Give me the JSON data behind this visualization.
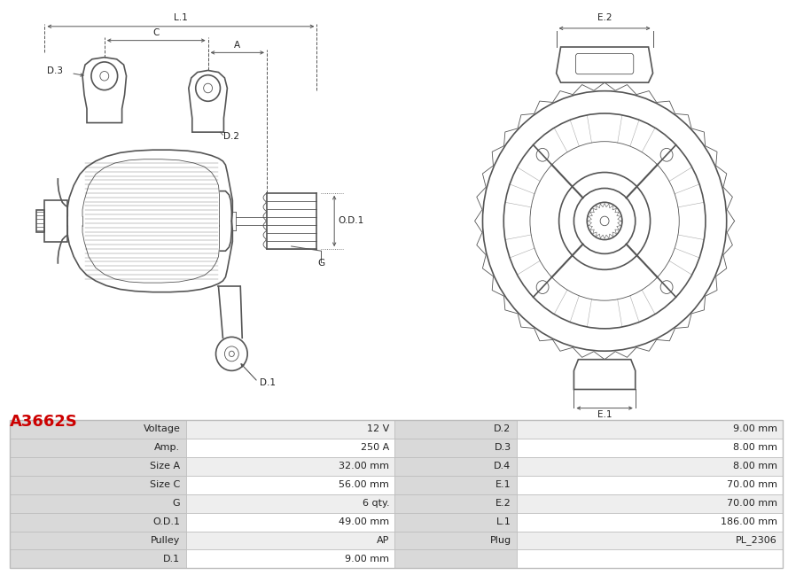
{
  "title": "A3662S",
  "title_color": "#cc0000",
  "table_left_headers": [
    "Voltage",
    "Amp.",
    "Size A",
    "Size C",
    "G",
    "O.D.1",
    "Pulley",
    "D.1"
  ],
  "table_left_values": [
    "12 V",
    "250 A",
    "32.00 mm",
    "56.00 mm",
    "6 qty.",
    "49.00 mm",
    "AP",
    "9.00 mm"
  ],
  "table_right_headers": [
    "D.2",
    "D.3",
    "D.4",
    "E.1",
    "E.2",
    "L.1",
    "Plug",
    ""
  ],
  "table_right_values": [
    "9.00 mm",
    "8.00 mm",
    "8.00 mm",
    "70.00 mm",
    "70.00 mm",
    "186.00 mm",
    "PL_2306",
    ""
  ],
  "bg_color": "#ffffff",
  "header_bg": "#d9d9d9",
  "row_bg_odd": "#eeeeee",
  "row_bg_even": "#ffffff",
  "border_color": "#bbbbbb",
  "text_color": "#222222",
  "lc": "#555555",
  "lw_main": 1.2,
  "lw_thin": 0.6,
  "lw_dim": 0.7
}
